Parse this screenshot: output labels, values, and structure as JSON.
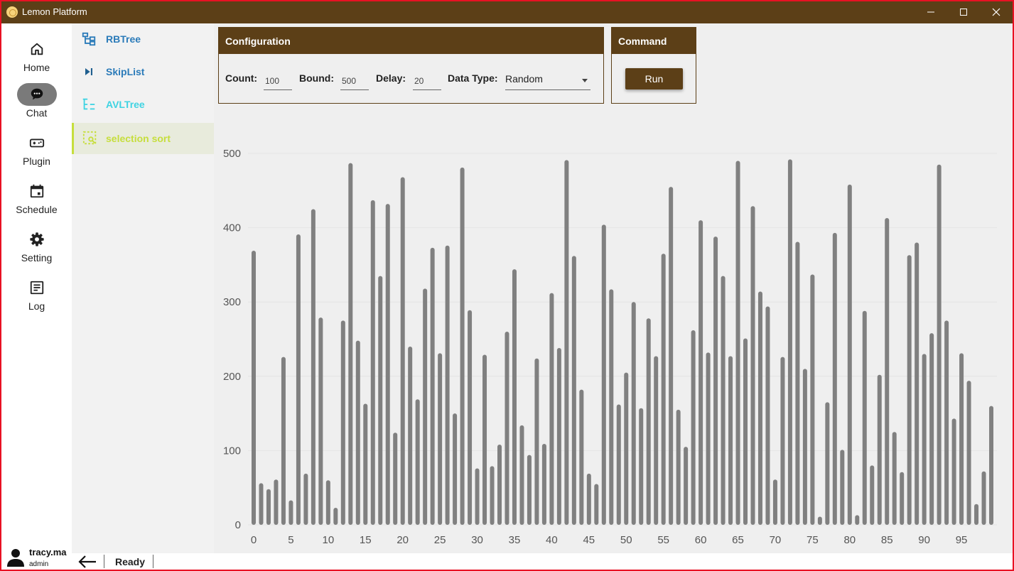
{
  "window": {
    "title": "Lemon Platform",
    "logo_icon": "lemon-slice-icon",
    "controls": [
      "minimize",
      "maximize",
      "close"
    ]
  },
  "nav": {
    "items": [
      {
        "label": "Home",
        "icon": "home-icon",
        "active": false
      },
      {
        "label": "Chat",
        "icon": "chat-icon",
        "active": true
      },
      {
        "label": "Plugin",
        "icon": "gamepad-icon",
        "active": false
      },
      {
        "label": "Schedule",
        "icon": "calendar-icon",
        "active": false
      },
      {
        "label": "Setting",
        "icon": "gear-icon",
        "active": false
      },
      {
        "label": "Log",
        "icon": "log-icon",
        "active": false
      }
    ]
  },
  "subnav": {
    "items": [
      {
        "label": "RBTree",
        "icon": "tree-icon",
        "color": "#2b7bb9"
      },
      {
        "label": "SkipList",
        "icon": "skip-next-icon",
        "color": "#2b7bb9"
      },
      {
        "label": "AVLTree",
        "icon": "avl-tree-icon",
        "color": "#3fd3e2"
      },
      {
        "label": "selection sort",
        "icon": "select-search-icon",
        "color": "#c6de3c",
        "active": true
      }
    ]
  },
  "configuration": {
    "title": "Configuration",
    "count_label": "Count:",
    "count_value": "100",
    "bound_label": "Bound:",
    "bound_value": "500",
    "delay_label": "Delay:",
    "delay_value": "20",
    "type_label": "Data Type:",
    "type_value": "Random"
  },
  "command": {
    "title": "Command",
    "run_label": "Run"
  },
  "chart_data": {
    "type": "bar",
    "title": "",
    "xlabel": "",
    "ylabel": "",
    "x": [
      0,
      1,
      2,
      3,
      4,
      5,
      6,
      7,
      8,
      9,
      10,
      11,
      12,
      13,
      14,
      15,
      16,
      17,
      18,
      19,
      20,
      21,
      22,
      23,
      24,
      25,
      26,
      27,
      28,
      29,
      30,
      31,
      32,
      33,
      34,
      35,
      36,
      37,
      38,
      39,
      40,
      41,
      42,
      43,
      44,
      45,
      46,
      47,
      48,
      49,
      50,
      51,
      52,
      53,
      54,
      55,
      56,
      57,
      58,
      59,
      60,
      61,
      62,
      63,
      64,
      65,
      66,
      67,
      68,
      69,
      70,
      71,
      72,
      73,
      74,
      75,
      76,
      77,
      78,
      79,
      80,
      81,
      82,
      83,
      84,
      85,
      86,
      87,
      88,
      89,
      90,
      91,
      92,
      93,
      94,
      95,
      96,
      97,
      98,
      99
    ],
    "values": [
      369,
      56,
      48,
      61,
      226,
      33,
      391,
      69,
      425,
      279,
      60,
      23,
      275,
      487,
      248,
      163,
      437,
      335,
      432,
      124,
      468,
      240,
      169,
      318,
      373,
      231,
      376,
      150,
      481,
      289,
      76,
      229,
      79,
      108,
      260,
      344,
      134,
      94,
      224,
      109,
      312,
      238,
      491,
      362,
      182,
      69,
      55,
      404,
      317,
      162,
      205,
      300,
      157,
      278,
      227,
      365,
      455,
      155,
      105,
      262,
      410,
      232,
      388,
      335,
      227,
      490,
      251,
      429,
      314,
      294,
      61,
      226,
      492,
      381,
      210,
      337,
      11,
      165,
      393,
      101,
      458,
      13,
      288,
      80,
      202,
      413,
      125,
      71,
      363,
      380,
      230,
      258,
      485,
      275,
      143,
      231,
      194,
      28,
      72,
      160
    ],
    "ylim": [
      0,
      500
    ],
    "yticks": [
      0,
      100,
      200,
      300,
      400,
      500
    ],
    "xticks": [
      0,
      5,
      10,
      15,
      20,
      25,
      30,
      35,
      40,
      45,
      50,
      55,
      60,
      65,
      70,
      75,
      80,
      85,
      90,
      95
    ],
    "bar_color": "#808080",
    "grid": true
  },
  "user": {
    "name": "tracy.ma",
    "role": "admin",
    "avatar_icon": "person-icon"
  },
  "status": {
    "back_icon": "arrow-left-icon",
    "text": "Ready"
  }
}
